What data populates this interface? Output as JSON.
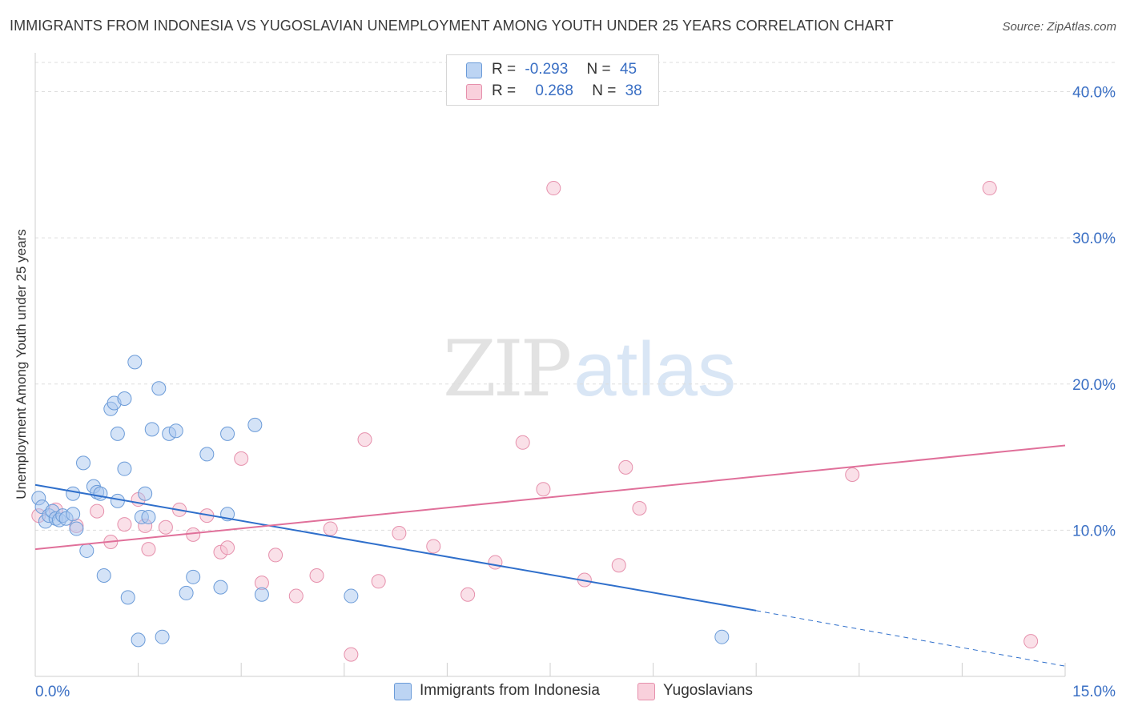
{
  "header": {
    "title": "IMMIGRANTS FROM INDONESIA VS YUGOSLAVIAN UNEMPLOYMENT AMONG YOUTH UNDER 25 YEARS CORRELATION CHART",
    "source": "Source: ZipAtlas.com"
  },
  "watermark": {
    "zip": "ZIP",
    "atlas": "atlas"
  },
  "legend": {
    "rows": [
      {
        "r_label": "R =",
        "r_value": "-0.293",
        "n_label": "N =",
        "n_value": "45"
      },
      {
        "r_label": "R =",
        "r_value": "0.268",
        "n_label": "N =",
        "n_value": "38"
      }
    ]
  },
  "colors": {
    "blue_fill": "#a9c8ef",
    "blue_stroke": "#6b9bd8",
    "blue_line": "#2f6fcb",
    "pink_fill": "#f6c2d2",
    "pink_stroke": "#e690ac",
    "pink_line": "#e0709a",
    "tick_text": "#3a6fc4"
  },
  "chart_data": {
    "type": "scatter",
    "title": "IMMIGRANTS FROM INDONESIA VS YUGOSLAVIAN UNEMPLOYMENT AMONG YOUTH UNDER 25 YEARS CORRELATION CHART",
    "xlabel": "",
    "ylabel": "Unemployment Among Youth under 25 years",
    "xlim": [
      0,
      15
    ],
    "ylim": [
      0,
      42
    ],
    "x_tick_labels": [
      "0.0%",
      "15.0%"
    ],
    "y_ticks": [
      10,
      20,
      30,
      40
    ],
    "y_tick_labels": [
      "10.0%",
      "20.0%",
      "30.0%",
      "40.0%"
    ],
    "grid": true,
    "legend_position": "top-center",
    "series": [
      {
        "name": "Immigrants from Indonesia",
        "color": "#a9c8ef",
        "trend": {
          "x": [
            0,
            10.5
          ],
          "y": [
            13.1,
            4.5
          ],
          "dashed_to": [
            15,
            0.7
          ]
        },
        "points": [
          [
            0.05,
            12.2
          ],
          [
            0.1,
            11.6
          ],
          [
            0.15,
            10.6
          ],
          [
            0.2,
            11.0
          ],
          [
            0.25,
            11.3
          ],
          [
            0.3,
            10.8
          ],
          [
            0.35,
            10.7
          ],
          [
            0.4,
            11.0
          ],
          [
            0.45,
            10.8
          ],
          [
            0.55,
            11.1
          ],
          [
            0.6,
            10.1
          ],
          [
            0.7,
            14.6
          ],
          [
            0.75,
            8.6
          ],
          [
            0.55,
            12.5
          ],
          [
            0.85,
            13.0
          ],
          [
            0.9,
            12.6
          ],
          [
            0.95,
            12.5
          ],
          [
            1.0,
            6.9
          ],
          [
            1.1,
            18.3
          ],
          [
            1.15,
            18.7
          ],
          [
            1.2,
            16.6
          ],
          [
            1.2,
            12.0
          ],
          [
            1.3,
            19.0
          ],
          [
            1.3,
            14.2
          ],
          [
            1.35,
            5.4
          ],
          [
            1.45,
            21.5
          ],
          [
            1.5,
            2.5
          ],
          [
            1.55,
            10.9
          ],
          [
            1.6,
            12.5
          ],
          [
            1.7,
            16.9
          ],
          [
            1.8,
            19.7
          ],
          [
            1.85,
            2.7
          ],
          [
            1.95,
            16.6
          ],
          [
            2.05,
            16.8
          ],
          [
            2.2,
            5.7
          ],
          [
            2.3,
            6.8
          ],
          [
            2.5,
            15.2
          ],
          [
            2.7,
            6.1
          ],
          [
            2.8,
            16.6
          ],
          [
            2.8,
            11.1
          ],
          [
            3.2,
            17.2
          ],
          [
            3.3,
            5.6
          ],
          [
            4.6,
            5.5
          ],
          [
            10.0,
            2.7
          ],
          [
            1.65,
            10.9
          ]
        ]
      },
      {
        "name": "Yugoslavians",
        "color": "#f6c2d2",
        "trend": {
          "x": [
            0,
            15
          ],
          "y": [
            8.7,
            15.8
          ]
        },
        "points": [
          [
            0.05,
            11.0
          ],
          [
            0.3,
            11.4
          ],
          [
            0.6,
            10.3
          ],
          [
            0.9,
            11.3
          ],
          [
            1.1,
            9.2
          ],
          [
            1.3,
            10.4
          ],
          [
            1.5,
            12.1
          ],
          [
            1.65,
            8.7
          ],
          [
            1.9,
            10.2
          ],
          [
            2.1,
            11.4
          ],
          [
            2.3,
            9.7
          ],
          [
            2.5,
            11.0
          ],
          [
            2.7,
            8.5
          ],
          [
            2.8,
            8.8
          ],
          [
            3.0,
            14.9
          ],
          [
            3.3,
            6.4
          ],
          [
            3.5,
            8.3
          ],
          [
            3.8,
            5.5
          ],
          [
            4.1,
            6.9
          ],
          [
            4.3,
            10.1
          ],
          [
            4.6,
            1.5
          ],
          [
            4.8,
            16.2
          ],
          [
            5.0,
            6.5
          ],
          [
            5.3,
            9.8
          ],
          [
            5.8,
            8.9
          ],
          [
            6.3,
            5.6
          ],
          [
            6.7,
            7.8
          ],
          [
            7.1,
            16.0
          ],
          [
            7.4,
            12.8
          ],
          [
            7.55,
            33.4
          ],
          [
            8.0,
            6.6
          ],
          [
            8.5,
            7.6
          ],
          [
            8.6,
            14.3
          ],
          [
            8.8,
            11.5
          ],
          [
            11.9,
            13.8
          ],
          [
            13.9,
            33.4
          ],
          [
            14.5,
            2.4
          ],
          [
            1.6,
            10.3
          ]
        ]
      }
    ]
  },
  "bottom_legend": {
    "items": [
      {
        "label": "Immigrants from Indonesia"
      },
      {
        "label": "Yugoslavians"
      }
    ]
  }
}
